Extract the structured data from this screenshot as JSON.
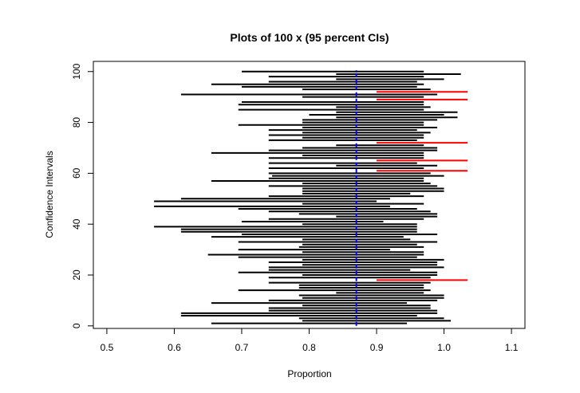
{
  "chart_data": {
    "type": "interval",
    "title": "Plots of 100 x (95 percent CIs)",
    "xlabel": "Proportion",
    "ylabel": "Confidence Intervals",
    "xlim": [
      0.48,
      1.12
    ],
    "ylim": [
      -1,
      104
    ],
    "xticks": [
      0.5,
      0.6,
      0.7,
      0.8,
      0.9,
      1.0,
      1.1
    ],
    "xtick_labels": [
      "0.5",
      "0.6",
      "0.7",
      "0.8",
      "0.9",
      "1.0",
      "1.1"
    ],
    "yticks": [
      0,
      20,
      40,
      60,
      80,
      100
    ],
    "ytick_labels": [
      "0",
      "20",
      "40",
      "60",
      "80",
      "100"
    ],
    "reference_value": 0.87,
    "colors": {
      "covering": "#000000",
      "missing": "#ff0000",
      "reference": "#0000ff"
    },
    "intervals": [
      [
        0.655,
        0.945
      ],
      [
        0.79,
        1.01
      ],
      [
        0.785,
        1.0
      ],
      [
        0.61,
        0.96
      ],
      [
        0.61,
        0.99
      ],
      [
        0.74,
        0.99
      ],
      [
        0.74,
        0.98
      ],
      [
        0.79,
        0.98
      ],
      [
        0.655,
        0.945
      ],
      [
        0.74,
        0.99
      ],
      [
        0.79,
        1.0
      ],
      [
        0.785,
        1.0
      ],
      [
        0.84,
        0.97
      ],
      [
        0.695,
        0.98
      ],
      [
        0.785,
        0.97
      ],
      [
        0.785,
        0.97
      ],
      [
        0.74,
        0.98
      ],
      [
        0.9,
        1.035
      ],
      [
        0.74,
        0.98
      ],
      [
        0.79,
        0.99
      ],
      [
        0.695,
        0.99
      ],
      [
        0.74,
        0.95
      ],
      [
        0.74,
        1.0
      ],
      [
        0.79,
        0.99
      ],
      [
        0.74,
        0.99
      ],
      [
        0.79,
        1.0
      ],
      [
        0.695,
        0.96
      ],
      [
        0.65,
        0.97
      ],
      [
        0.79,
        0.97
      ],
      [
        0.695,
        0.92
      ],
      [
        0.785,
        0.97
      ],
      [
        0.79,
        0.96
      ],
      [
        0.695,
        0.99
      ],
      [
        0.79,
        0.95
      ],
      [
        0.655,
        0.94
      ],
      [
        0.7,
        0.99
      ],
      [
        0.61,
        0.96
      ],
      [
        0.61,
        0.96
      ],
      [
        0.57,
        0.96
      ],
      [
        0.79,
        0.96
      ],
      [
        0.7,
        0.91
      ],
      [
        0.74,
        0.97
      ],
      [
        0.84,
        0.99
      ],
      [
        0.785,
        0.99
      ],
      [
        0.74,
        0.98
      ],
      [
        0.695,
        0.96
      ],
      [
        0.57,
        0.92
      ],
      [
        0.79,
        0.97
      ],
      [
        0.57,
        0.9
      ],
      [
        0.61,
        0.92
      ],
      [
        0.74,
        0.97
      ],
      [
        0.79,
        0.95
      ],
      [
        0.79,
        1.0
      ],
      [
        0.79,
        1.0
      ],
      [
        0.74,
        0.99
      ],
      [
        0.79,
        0.98
      ],
      [
        0.655,
        0.97
      ],
      [
        0.74,
        0.97
      ],
      [
        0.745,
        1.0
      ],
      [
        0.74,
        0.98
      ],
      [
        0.9,
        1.035
      ],
      [
        0.74,
        0.97
      ],
      [
        0.84,
        0.99
      ],
      [
        0.74,
        0.96
      ],
      [
        0.9,
        1.035
      ],
      [
        0.74,
        0.97
      ],
      [
        0.79,
        0.97
      ],
      [
        0.655,
        0.97
      ],
      [
        0.74,
        0.99
      ],
      [
        0.79,
        0.99
      ],
      [
        0.84,
        0.97
      ],
      [
        0.9,
        1.035
      ],
      [
        0.74,
        0.96
      ],
      [
        0.79,
        0.97
      ],
      [
        0.74,
        0.97
      ],
      [
        0.79,
        0.98
      ],
      [
        0.74,
        0.96
      ],
      [
        0.79,
        0.99
      ],
      [
        0.695,
        0.97
      ],
      [
        0.79,
        0.97
      ],
      [
        0.79,
        0.99
      ],
      [
        0.84,
        1.02
      ],
      [
        0.8,
        1.0
      ],
      [
        0.84,
        1.02
      ],
      [
        0.695,
        0.97
      ],
      [
        0.84,
        0.98
      ],
      [
        0.695,
        0.97
      ],
      [
        0.7,
        0.97
      ],
      [
        0.9,
        1.035
      ],
      [
        0.79,
        0.97
      ],
      [
        0.61,
        0.99
      ],
      [
        0.9,
        1.035
      ],
      [
        0.79,
        0.98
      ],
      [
        0.7,
        0.96
      ],
      [
        0.655,
        0.97
      ],
      [
        0.74,
        0.96
      ],
      [
        0.84,
        1.0
      ],
      [
        0.74,
        0.97
      ],
      [
        0.84,
        1.025
      ],
      [
        0.7,
        0.97
      ]
    ]
  }
}
